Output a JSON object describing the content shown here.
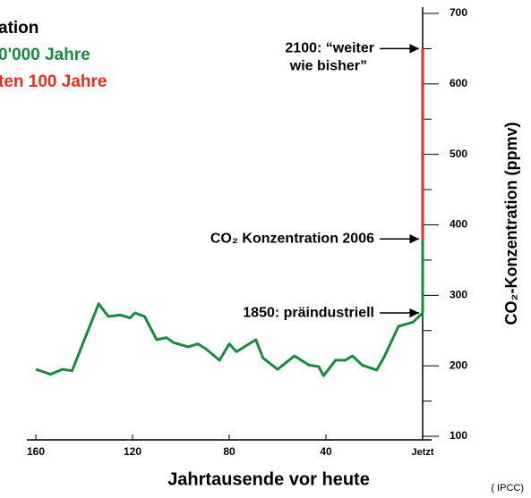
{
  "chart_data": {
    "type": "line",
    "legend_title": "ation",
    "x_label": "Jahrtausende vor heute",
    "y_label": "CO₂-Konzentration (ppmv)",
    "source": "( IPCC)",
    "xlim": [
      160,
      0
    ],
    "xticks": [
      160,
      120,
      80,
      40,
      {
        "value": 0,
        "label": "Jetzt"
      }
    ],
    "ylim": [
      100,
      700
    ],
    "yticks": [
      100,
      200,
      300,
      400,
      500,
      600,
      700
    ],
    "yminorticks": [
      150,
      250,
      350,
      450,
      550,
      650
    ],
    "legend": "top-left",
    "series": [
      {
        "name": "0'000 Jahre",
        "color": "#1a8a3e",
        "x": [
          160,
          154,
          149,
          145,
          134,
          130,
          125,
          121,
          119,
          115,
          110,
          106,
          103,
          97,
          93,
          90,
          84,
          80,
          77,
          69,
          66,
          60,
          53,
          47,
          43,
          41,
          36,
          32,
          29,
          25,
          19,
          16,
          10,
          4,
          0,
          0
        ],
        "values": [
          195,
          188,
          195,
          193,
          288,
          270,
          272,
          268,
          275,
          270,
          237,
          240,
          233,
          227,
          231,
          225,
          208,
          231,
          220,
          237,
          211,
          195,
          214,
          201,
          199,
          186,
          208,
          208,
          214,
          201,
          194,
          212,
          256,
          262,
          275,
          380
        ]
      },
      {
        "name": "ten 100 Jahre",
        "color": "#ee2a1c",
        "x": [
          0,
          0
        ],
        "values": [
          380,
          650
        ]
      }
    ],
    "annotations": [
      {
        "text": [
          "2100: “weiter",
          "wie bisher”"
        ],
        "y": 650
      },
      {
        "text": [
          "CO₂ Konzentration 2006"
        ],
        "y": 380
      },
      {
        "text": [
          "1850: präindustriell"
        ],
        "y": 275
      }
    ]
  }
}
